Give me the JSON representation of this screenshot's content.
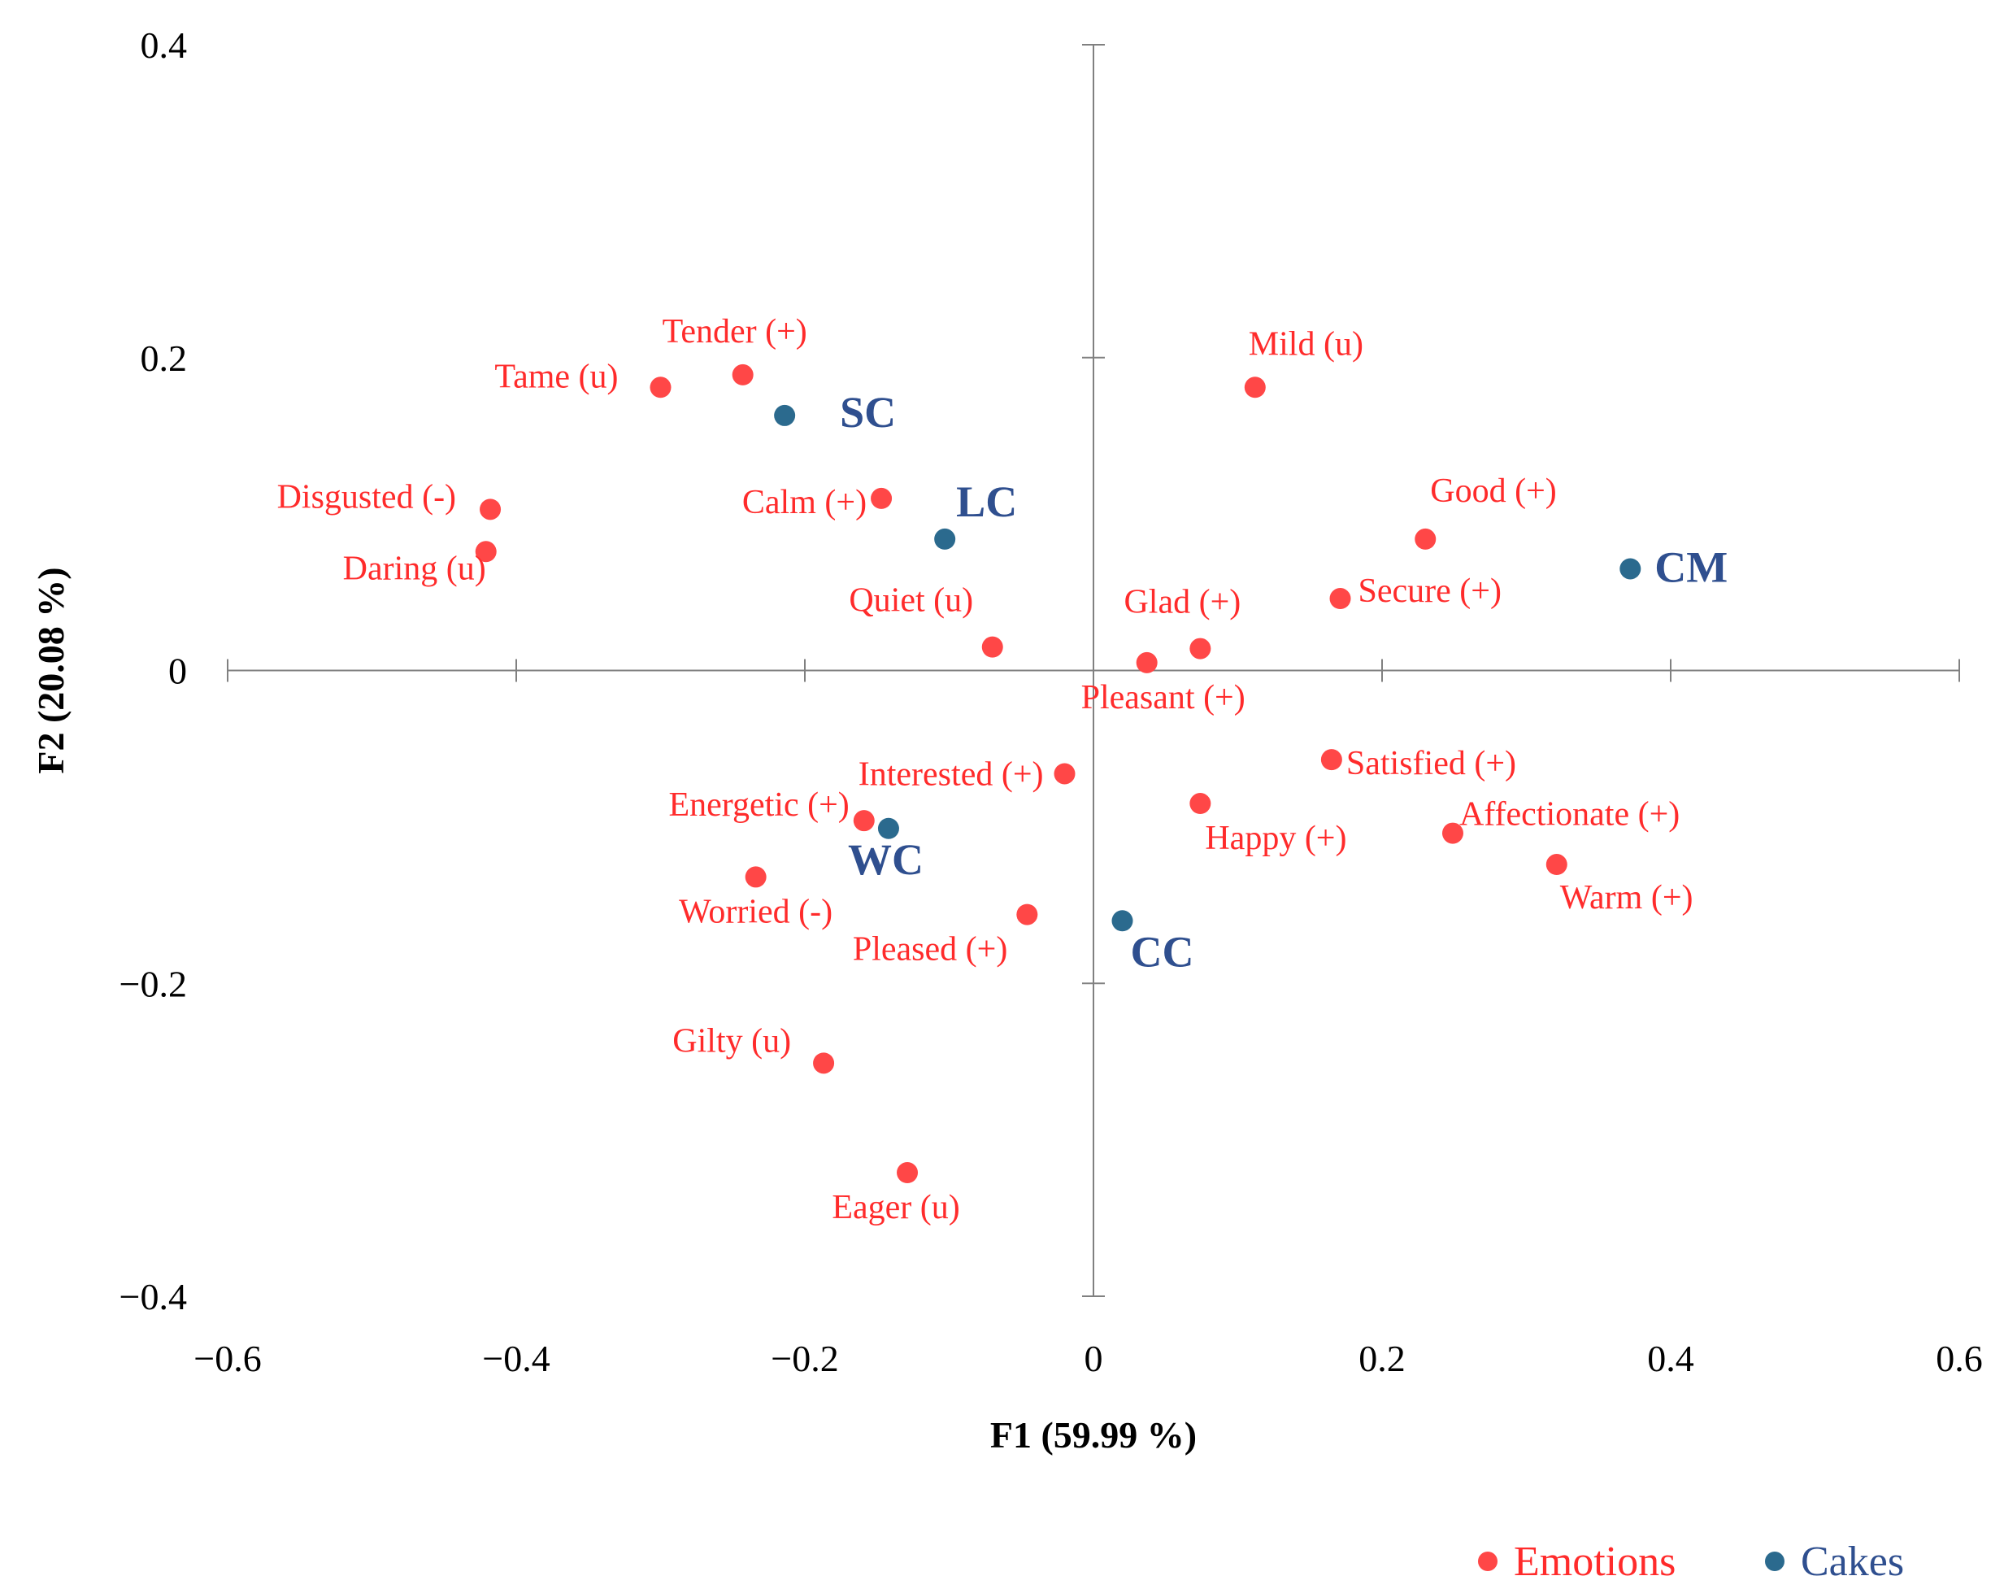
{
  "chart_data": {
    "type": "scatter",
    "xlabel": "F1 (59.99 %)",
    "ylabel": "F2 (20.08 %)",
    "xlim": [
      -0.6,
      0.6
    ],
    "ylim": [
      -0.4,
      0.4
    ],
    "x_ticks": [
      "−0.6",
      "−0.4",
      "−0.2",
      "0",
      "0.2",
      "0.4",
      "0.6"
    ],
    "y_ticks": [
      "−0.4",
      "−0.2",
      "0",
      "0.2",
      "0.4"
    ],
    "grid": false,
    "legend_position": "bottom-right",
    "series": [
      {
        "name": "Emotions",
        "color": "#ff4747",
        "label_color": "#ff2b2b",
        "points": [
          {
            "label": "Tender (+)",
            "x": -0.243,
            "y": 0.189
          },
          {
            "label": "Tame (u)",
            "x": -0.3,
            "y": 0.181
          },
          {
            "label": "Mild (u)",
            "x": 0.112,
            "y": 0.181
          },
          {
            "label": "Disgusted (-)",
            "x": -0.418,
            "y": 0.103
          },
          {
            "label": "Calm (+)",
            "x": -0.147,
            "y": 0.11
          },
          {
            "label": "Daring (u)",
            "x": -0.421,
            "y": 0.076
          },
          {
            "label": "Good (+)",
            "x": 0.23,
            "y": 0.084
          },
          {
            "label": "Secure (+)",
            "x": 0.171,
            "y": 0.046
          },
          {
            "label": "Quiet (u)",
            "x": -0.07,
            "y": 0.015
          },
          {
            "label": "Glad (+)",
            "x": 0.074,
            "y": 0.014
          },
          {
            "label": "Pleasant (+)",
            "x": 0.037,
            "y": 0.005
          },
          {
            "label": "Satisfied (+)",
            "x": 0.165,
            "y": -0.057
          },
          {
            "label": "Interested (+)",
            "x": -0.02,
            "y": -0.066
          },
          {
            "label": "Happy (+)",
            "x": 0.074,
            "y": -0.085
          },
          {
            "label": "Energetic (+)",
            "x": -0.159,
            "y": -0.096
          },
          {
            "label": "Affectionate (+)",
            "x": 0.249,
            "y": -0.104
          },
          {
            "label": "Warm (+)",
            "x": 0.321,
            "y": -0.124
          },
          {
            "label": "Worried (-)",
            "x": -0.234,
            "y": -0.132
          },
          {
            "label": "Pleased (+)",
            "x": -0.046,
            "y": -0.156
          },
          {
            "label": "Gilty (u)",
            "x": -0.187,
            "y": -0.251
          },
          {
            "label": "Eager (u)",
            "x": -0.129,
            "y": -0.321
          }
        ]
      },
      {
        "name": "Cakes",
        "color": "#2b6a8e",
        "label_color": "#2f4f8f",
        "points": [
          {
            "label": "SC",
            "x": -0.214,
            "y": 0.163
          },
          {
            "label": "LC",
            "x": -0.103,
            "y": 0.084
          },
          {
            "label": "CM",
            "x": 0.372,
            "y": 0.065
          },
          {
            "label": "WC",
            "x": -0.142,
            "y": -0.101
          },
          {
            "label": "CC",
            "x": 0.02,
            "y": -0.16
          }
        ]
      }
    ]
  }
}
